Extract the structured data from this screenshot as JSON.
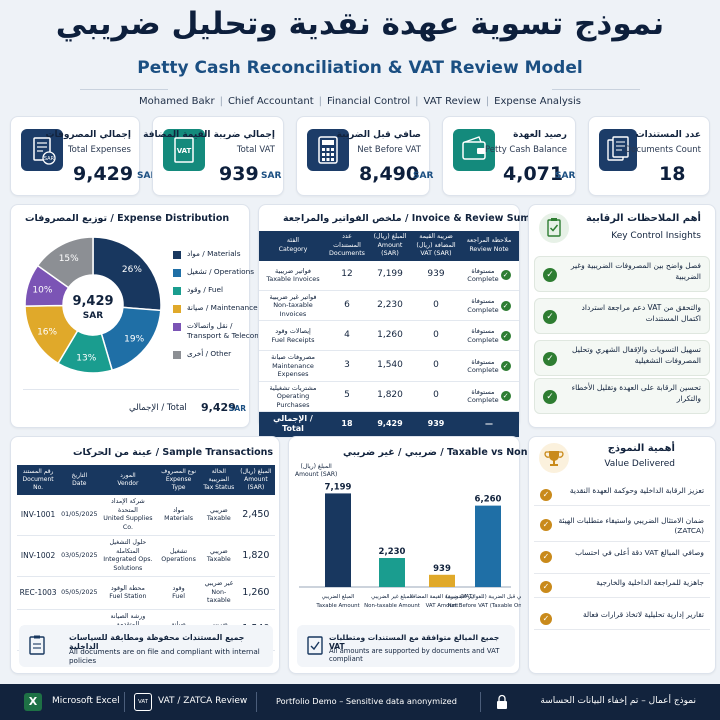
{
  "header": {
    "title_ar": "نموذج تسوية عهدة نقدية وتحليل ضريبي",
    "title_en": "Petty Cash Reconciliation & VAT Review Model",
    "byline": [
      "Mohamed Bakr",
      "Chief Accountant",
      "Financial Control",
      "VAT Review",
      "Expense Analysis"
    ]
  },
  "kpis": [
    {
      "ar": "إجمالي المصروفات",
      "en": "Total Expenses",
      "value": "9,429",
      "unit": "SAR",
      "icon": "receipt-icon"
    },
    {
      "ar": "إجمالي ضريبة القيمة المضافة",
      "en": "Total VAT",
      "value": "939",
      "unit": "SAR",
      "icon": "vat-document-icon"
    },
    {
      "ar": "صافي قبل الضريبة",
      "en": "Net Before VAT",
      "value": "8,490",
      "unit": "SAR",
      "icon": "calculator-icon"
    },
    {
      "ar": "رصيد العهدة",
      "en": "Petty Cash Balance",
      "value": "4,071",
      "unit": "SAR",
      "icon": "wallet-icon"
    },
    {
      "ar": "عدد المستندات",
      "en": "Documents Count",
      "value": "18",
      "unit": "",
      "icon": "documents-icon"
    }
  ],
  "distribution": {
    "title": "توزيع المصروفات / Expense Distribution",
    "center_value": "9,429",
    "center_unit": "SAR",
    "total_label": "الإجمالي / Total",
    "total_value": "9,429",
    "total_unit": "SAR",
    "chart_data": {
      "type": "pie",
      "categories": [
        "مواد / Materials",
        "تشغيل / Operations",
        "وقود / Fuel",
        "صيانة / Maintenance",
        "نقل واتصالات / Transport & Telecom",
        "أخرى / Other"
      ],
      "values": [
        26,
        19,
        13,
        16,
        10,
        15
      ],
      "labels": [
        "26%",
        "19%",
        "13%",
        "16%",
        "10%",
        "15%"
      ],
      "colors": [
        "#18375f",
        "#1f6fa6",
        "#1a9d8f",
        "#e0a92a",
        "#7b54b5",
        "#8c8f94"
      ]
    },
    "legend": [
      {
        "label_ar": "مواد / Materials",
        "label_en": "",
        "color": "#18375f"
      },
      {
        "label_ar": "تشغيل / Operations",
        "label_en": "",
        "color": "#1f6fa6"
      },
      {
        "label_ar": "وقود / Fuel",
        "label_en": "",
        "color": "#1a9d8f"
      },
      {
        "label_ar": "صيانة / Maintenance",
        "label_en": "",
        "color": "#e0a92a"
      },
      {
        "label_ar": "نقل واتصالات /",
        "label_en": "Transport & Telecom",
        "color": "#7b54b5"
      },
      {
        "label_ar": "أخرى / Other",
        "label_en": "",
        "color": "#8c8f94"
      }
    ]
  },
  "invoice_summary": {
    "title": "ملخص الفواتير والمراجعة / Invoice & Review Summary",
    "columns": [
      {
        "ar": "الفئة",
        "en": "Category"
      },
      {
        "ar": "عدد المستندات",
        "en": "Documents"
      },
      {
        "ar": "المبلغ (ريال)",
        "en": "Amount (SAR)"
      },
      {
        "ar": "ضريبة القيمة المضافة (ريال)",
        "en": "VAT (SAR)"
      },
      {
        "ar": "ملاحظة المراجعة",
        "en": "Review Note"
      }
    ],
    "rows": [
      {
        "cat_ar": "فواتير ضريبية",
        "cat_en": "Taxable Invoices",
        "docs": "12",
        "amount": "7,199",
        "vat": "939",
        "note_ar": "مستوفاة",
        "note_en": "Complete"
      },
      {
        "cat_ar": "فواتير غير ضريبية",
        "cat_en": "Non-taxable Invoices",
        "docs": "6",
        "amount": "2,230",
        "vat": "0",
        "note_ar": "مستوفاة",
        "note_en": "Complete"
      },
      {
        "cat_ar": "إيصالات وقود",
        "cat_en": "Fuel Receipts",
        "docs": "4",
        "amount": "1,260",
        "vat": "0",
        "note_ar": "مستوفاة",
        "note_en": "Complete"
      },
      {
        "cat_ar": "مصروفات صيانة",
        "cat_en": "Maintenance Expenses",
        "docs": "3",
        "amount": "1,540",
        "vat": "0",
        "note_ar": "مستوفاة",
        "note_en": "Complete"
      },
      {
        "cat_ar": "مشتريات تشغيلية",
        "cat_en": "Operating Purchases",
        "docs": "5",
        "amount": "1,820",
        "vat": "0",
        "note_ar": "مستوفاة",
        "note_en": "Complete"
      }
    ],
    "total": {
      "label": "الإجمالي / Total",
      "docs": "18",
      "amount": "9,429",
      "vat": "939",
      "note": "—"
    }
  },
  "insights": {
    "title_ar": "أهم الملاحظات الرقابية",
    "title_en": "Key Control Insights",
    "items": [
      "فصل واضح بين المصروفات الضريبية وغير الضريبية",
      "دعم مراجعة استرداد VAT والتحقق من اكتمال المستندات",
      "تسهيل التسويات والإقفال الشهري وتحليل المصروفات التشغيلية",
      "تحسين الرقابة على العهدة وتقليل الأخطاء والتكرار"
    ]
  },
  "transactions": {
    "title": "عينة من الحركات / Sample Transactions",
    "columns": [
      {
        "ar": "رقم المستند",
        "en": "Document No."
      },
      {
        "ar": "التاريخ",
        "en": "Date"
      },
      {
        "ar": "المورد",
        "en": "Vendor"
      },
      {
        "ar": "نوع المصروف",
        "en": "Expense Type"
      },
      {
        "ar": "الحالة الضريبية",
        "en": "Tax Status"
      },
      {
        "ar": "المبلغ (ريال)",
        "en": "Amount (SAR)"
      }
    ],
    "rows": [
      {
        "doc": "INV-1001",
        "date": "01/05/2025",
        "vendor_ar": "شركة الإمداد المتحدة",
        "vendor_en": "United Supplies Co.",
        "type_ar": "مواد",
        "type_en": "Materials",
        "tax_ar": "ضريبي",
        "tax_en": "Taxable",
        "amount": "2,450"
      },
      {
        "doc": "INV-1002",
        "date": "03/05/2025",
        "vendor_ar": "حلول التشغيل المتكاملة",
        "vendor_en": "Integrated Ops. Solutions",
        "type_ar": "تشغيل",
        "type_en": "Operations",
        "tax_ar": "ضريبي",
        "tax_en": "Taxable",
        "amount": "1,820"
      },
      {
        "doc": "REC-1003",
        "date": "05/05/2025",
        "vendor_ar": "محطة الوقود",
        "vendor_en": "Fuel Station",
        "type_ar": "وقود",
        "type_en": "Fuel",
        "tax_ar": "غير ضريبي",
        "tax_en": "Non-taxable",
        "amount": "1,260"
      },
      {
        "doc": "INV-1004",
        "date": "07/05/2025",
        "vendor_ar": "ورشة الصيانة المتقدمة",
        "vendor_en": "Advanced Maintenance",
        "type_ar": "صيانة",
        "type_en": "Maintenance",
        "tax_ar": "ضريبي",
        "tax_en": "Taxable",
        "amount": "1,540"
      }
    ],
    "note_ar": "جميع المستندات محفوظة ومطابقة للسياسات الداخلية",
    "note_en": "All documents are on file and compliant with internal policies"
  },
  "taxable_chart": {
    "title": "ضريبي / غير ضريبي / Taxable vs Non-taxable",
    "ylabel_ar": "المبلغ (ريال)",
    "ylabel_en": "Amount (SAR)",
    "chart_data": {
      "type": "bar",
      "categories": [
        {
          "ar": "المبلغ الضريبي",
          "en": "Taxable Amount"
        },
        {
          "ar": "المبلغ غير الضريبي",
          "en": "Non-taxable Amount"
        },
        {
          "ar": "ضريبة القيمة المضافة (VAT)",
          "en": "VAT Amount"
        },
        {
          "ar": "صافي قبل الضريبة (للفواتير الضريبية)",
          "en": "Net Before VAT (Taxable Only)"
        }
      ],
      "values": [
        7199,
        2230,
        939,
        6260
      ],
      "labels": [
        "7,199",
        "2,230",
        "939",
        "6,260"
      ],
      "colors": [
        "#18375f",
        "#1a9d8f",
        "#e0a92a",
        "#1f6fa6"
      ],
      "ylim": [
        0,
        8000
      ]
    },
    "note_ar": "جميع المبالغ متوافقة مع المستندات ومتطلبات VAT",
    "note_en": "All amounts are supported by documents and VAT compliant"
  },
  "value": {
    "title_ar": "أهمية النموذج",
    "title_en": "Value Delivered",
    "items": [
      "تعزيز الرقابة الداخلية وحوكمة العهدة النقدية",
      "ضمان الامتثال الضريبي واستيفاء متطلبات الهيئة (ZATCA)",
      "دقة أعلى في احتساب VAT وصافي المبالغ",
      "جاهزية للمراجعة الداخلية والخارجية",
      "تقارير إدارية تحليلية لاتخاذ قرارات فعالة"
    ]
  },
  "footer": {
    "excel": "Microsoft Excel",
    "vat": "VAT / ZATCA Review",
    "portfolio": "Portfolio Demo – Sensitive data anonymized",
    "sample_ar": "نموذج أعمال – تم إخفاء البيانات الحساسة",
    "vat_badge": "VAT",
    "excel_badge": "X"
  }
}
